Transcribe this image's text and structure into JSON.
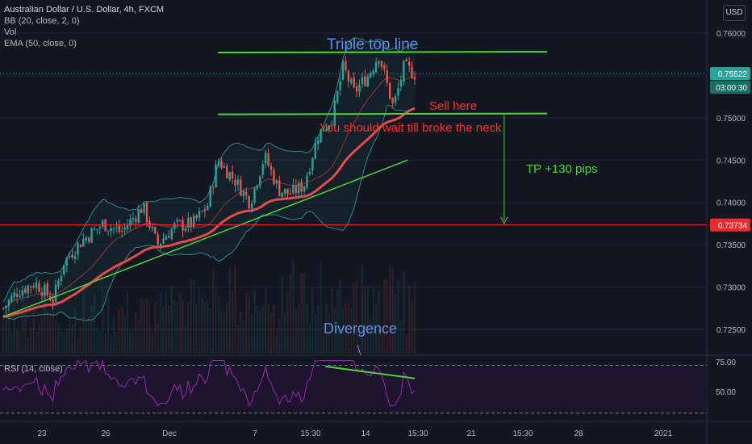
{
  "legend": {
    "title": "Australian Dollar / U.S. Dollar, 4h, FXCM",
    "bb": "BB (20, close, 2, 0)",
    "vol": "Vol",
    "ema": "EMA (50, close, 0)"
  },
  "currency": "USD",
  "rsi_label": "RSI (14, close)",
  "annotations": {
    "triple_top": "Triple top line",
    "sell_here": "Sell here",
    "wait_neck": "You should wait till broke the neck",
    "tp": "TP +130 pips",
    "divergence": "Divergence"
  },
  "price_labels": {
    "last": "0.75522",
    "countdown": "03:00:30",
    "level": "0.73734"
  },
  "colors": {
    "background": "#131722",
    "up": "#26a69a",
    "down": "#ef5350",
    "ema": "#e64a4a",
    "bb_band": "#2e8b82",
    "green_line": "#4cd53a",
    "red_level": "#ff2a2a",
    "annotation_blue": "#5b8fe6",
    "annotation_red": "#ff2a2a",
    "rsi_line": "#9c27b0"
  },
  "chart_data": {
    "type": "candlestick",
    "title": "Australian Dollar / U.S. Dollar, 4h, FXCM",
    "price_axis": {
      "ylim": [
        0.7225,
        0.7615
      ],
      "ticks": [
        "0.76000",
        "0.75500",
        "0.75000",
        "0.74500",
        "0.74000",
        "0.73500",
        "0.73000",
        "0.72500"
      ]
    },
    "x_ticks": [
      "23",
      "26",
      "Dec",
      "7",
      "15:30",
      "14",
      "15:30",
      "21",
      "15:30",
      "28",
      "2021"
    ],
    "rsi_axis": {
      "ylim": [
        30,
        80
      ],
      "ticks": [
        "75.00",
        "50.00"
      ],
      "band": [
        30,
        70
      ]
    },
    "last_price": 0.75522,
    "level": 0.73734,
    "triple_top_line": [
      {
        "x": 300,
        "y": 0.7577
      },
      {
        "x": 760,
        "y": 0.7578
      }
    ],
    "neckline": [
      {
        "x": 300,
        "y": 0.7504
      },
      {
        "x": 760,
        "y": 0.7505
      }
    ],
    "uptrend_line": [
      {
        "x": 0,
        "y": 0.7265
      },
      {
        "x": 565,
        "y": 0.745
      }
    ],
    "rsi_divergence_line": [
      {
        "x": 450,
        "y": 71
      },
      {
        "x": 575,
        "y": 61
      }
    ],
    "tp_arrow": {
      "x": 700,
      "from": 0.7505,
      "to": 0.7375
    },
    "anchors": [
      {
        "x": 0,
        "c": 0.7275
      },
      {
        "x": 20,
        "c": 0.7295
      },
      {
        "x": 45,
        "c": 0.7305
      },
      {
        "x": 70,
        "c": 0.7285
      },
      {
        "x": 85,
        "c": 0.733
      },
      {
        "x": 110,
        "c": 0.7355
      },
      {
        "x": 140,
        "c": 0.7375
      },
      {
        "x": 165,
        "c": 0.7365
      },
      {
        "x": 195,
        "c": 0.7395
      },
      {
        "x": 215,
        "c": 0.735
      },
      {
        "x": 240,
        "c": 0.7372
      },
      {
        "x": 265,
        "c": 0.7375
      },
      {
        "x": 285,
        "c": 0.7395
      },
      {
        "x": 300,
        "c": 0.745
      },
      {
        "x": 325,
        "c": 0.7425
      },
      {
        "x": 345,
        "c": 0.74
      },
      {
        "x": 365,
        "c": 0.7455
      },
      {
        "x": 385,
        "c": 0.7415
      },
      {
        "x": 400,
        "c": 0.741
      },
      {
        "x": 420,
        "c": 0.742
      },
      {
        "x": 440,
        "c": 0.748
      },
      {
        "x": 460,
        "c": 0.75
      },
      {
        "x": 475,
        "c": 0.756
      },
      {
        "x": 490,
        "c": 0.753
      },
      {
        "x": 510,
        "c": 0.755
      },
      {
        "x": 525,
        "c": 0.7575
      },
      {
        "x": 545,
        "c": 0.7512
      },
      {
        "x": 560,
        "c": 0.756
      },
      {
        "x": 575,
        "c": 0.7552
      }
    ]
  }
}
